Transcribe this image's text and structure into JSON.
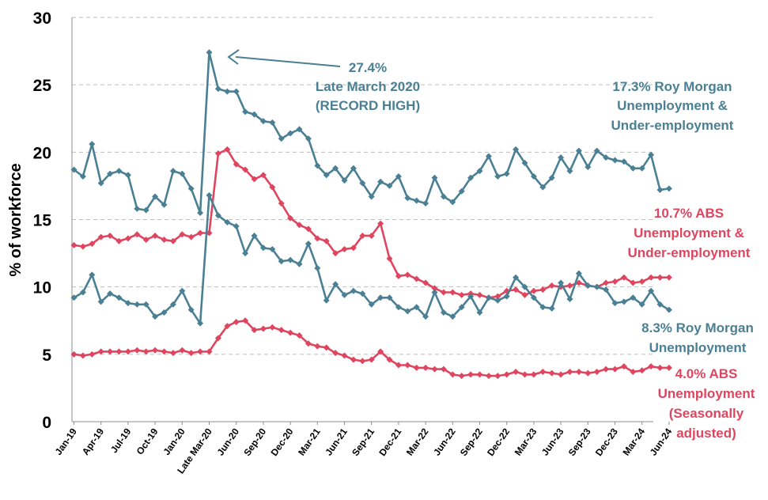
{
  "chart_data": {
    "type": "line",
    "ylabel": "% of workforce",
    "xlabel": "",
    "ylim": [
      0,
      30
    ],
    "yticks": [
      "0",
      "5",
      "10",
      "15",
      "20",
      "25",
      "30"
    ],
    "grid": "horizontal dashed",
    "x_tick_labels": [
      "Jan-19",
      "Apr-19",
      "Jul-19",
      "Oct-19",
      "Jan-20",
      "Late Mar-20",
      "Jun-20",
      "Sep-20",
      "Dec-20",
      "Mar-21",
      "Jun-21",
      "Sep-21",
      "Dec-21",
      "Mar-22",
      "Jun-22",
      "Sep-22",
      "Dec-22",
      "Mar-23",
      "Jun-23",
      "Sep-23",
      "Dec-23",
      "Mar-24",
      "Jun-24"
    ],
    "series": [
      {
        "name": "Roy Morgan Unemployment & Under-employment",
        "color": "#4a7f94",
        "values": [
          18.7,
          18.2,
          20.6,
          17.7,
          18.4,
          18.6,
          18.3,
          15.8,
          15.7,
          16.7,
          16.1,
          18.6,
          18.4,
          17.3,
          15.5,
          27.4,
          24.7,
          24.5,
          24.5,
          23.0,
          22.8,
          22.3,
          22.2,
          21.0,
          21.4,
          21.7,
          21.0,
          19.0,
          18.3,
          18.8,
          17.9,
          18.8,
          17.7,
          16.7,
          17.8,
          17.5,
          18.2,
          16.6,
          16.4,
          16.2,
          18.1,
          16.7,
          16.3,
          17.1,
          18.1,
          18.6,
          19.7,
          18.2,
          18.4,
          20.2,
          19.2,
          18.2,
          17.4,
          18.1,
          19.6,
          18.6,
          20.1,
          18.9,
          20.1,
          19.6,
          19.4,
          19.3,
          18.8,
          18.8,
          19.8,
          17.2,
          17.3
        ]
      },
      {
        "name": "ABS Unemployment & Under-employment",
        "color": "#e0455f",
        "values": [
          13.1,
          13.0,
          13.2,
          13.7,
          13.8,
          13.4,
          13.6,
          13.9,
          13.5,
          13.8,
          13.5,
          13.4,
          13.9,
          13.7,
          14.0,
          14.0,
          19.9,
          20.2,
          19.1,
          18.7,
          18.0,
          18.3,
          17.4,
          16.2,
          15.1,
          14.6,
          14.3,
          13.6,
          13.4,
          12.5,
          12.8,
          12.9,
          13.8,
          13.8,
          14.7,
          12.1,
          10.8,
          10.9,
          10.6,
          10.3,
          9.9,
          9.6,
          9.6,
          9.4,
          9.5,
          9.4,
          9.2,
          9.3,
          9.7,
          9.8,
          9.4,
          9.7,
          9.8,
          10.1,
          10.0,
          10.1,
          10.3,
          10.1,
          10.0,
          10.3,
          10.4,
          10.7,
          10.3,
          10.4,
          10.7,
          10.7,
          10.7
        ]
      },
      {
        "name": "Roy Morgan Unemployment",
        "color": "#4a7f94",
        "values": [
          9.2,
          9.6,
          10.9,
          8.9,
          9.5,
          9.2,
          8.8,
          8.7,
          8.7,
          7.8,
          8.1,
          8.7,
          9.7,
          8.3,
          7.3,
          16.8,
          15.3,
          14.8,
          14.5,
          12.5,
          13.8,
          12.9,
          12.8,
          11.9,
          12.0,
          11.7,
          13.2,
          11.4,
          9.0,
          10.2,
          9.4,
          9.7,
          9.5,
          8.7,
          9.2,
          9.2,
          8.5,
          8.2,
          8.5,
          7.8,
          9.6,
          8.1,
          7.8,
          8.5,
          9.3,
          8.1,
          9.2,
          9.0,
          9.3,
          10.7,
          10.0,
          9.2,
          8.5,
          8.4,
          10.3,
          9.1,
          11.0,
          10.1,
          10.0,
          9.8,
          8.8,
          8.9,
          9.2,
          8.7,
          9.7,
          8.7,
          8.3
        ]
      },
      {
        "name": "ABS Unemployment (Seasonally adjusted)",
        "color": "#e0455f",
        "values": [
          5.0,
          4.9,
          5.0,
          5.2,
          5.2,
          5.2,
          5.2,
          5.3,
          5.2,
          5.3,
          5.2,
          5.1,
          5.3,
          5.1,
          5.2,
          5.2,
          6.2,
          7.1,
          7.4,
          7.5,
          6.8,
          6.9,
          7.0,
          6.8,
          6.6,
          6.4,
          5.8,
          5.6,
          5.5,
          5.1,
          4.9,
          4.6,
          4.5,
          4.6,
          5.2,
          4.6,
          4.2,
          4.2,
          4.0,
          4.0,
          3.9,
          3.9,
          3.5,
          3.4,
          3.5,
          3.5,
          3.4,
          3.4,
          3.5,
          3.7,
          3.5,
          3.5,
          3.7,
          3.6,
          3.5,
          3.7,
          3.7,
          3.6,
          3.7,
          3.9,
          3.9,
          4.1,
          3.7,
          3.8,
          4.1,
          4.0,
          4.0
        ]
      }
    ],
    "annotations": {
      "record": {
        "value": "27.4%",
        "line1": "Late March 2020",
        "line2": "(RECORD HIGH)",
        "color": "#4a7f94"
      },
      "rm_under": {
        "line1": "17.3% Roy Morgan",
        "line2": "Unemployment &",
        "line3": "Under-employment",
        "color": "#4a7f94"
      },
      "abs_under": {
        "line1": "10.7% ABS",
        "line2": "Unemployment &",
        "line3": "Under-employment",
        "color": "#e0455f"
      },
      "rm_unemp": {
        "line1": "8.3% Roy Morgan",
        "line2": "Unemployment",
        "color": "#4a7f94"
      },
      "abs_unemp": {
        "line1": "4.0% ABS",
        "line2": "Unemployment",
        "line3": "(Seasonally",
        "line4": "adjusted)",
        "color": "#e0455f"
      }
    }
  }
}
